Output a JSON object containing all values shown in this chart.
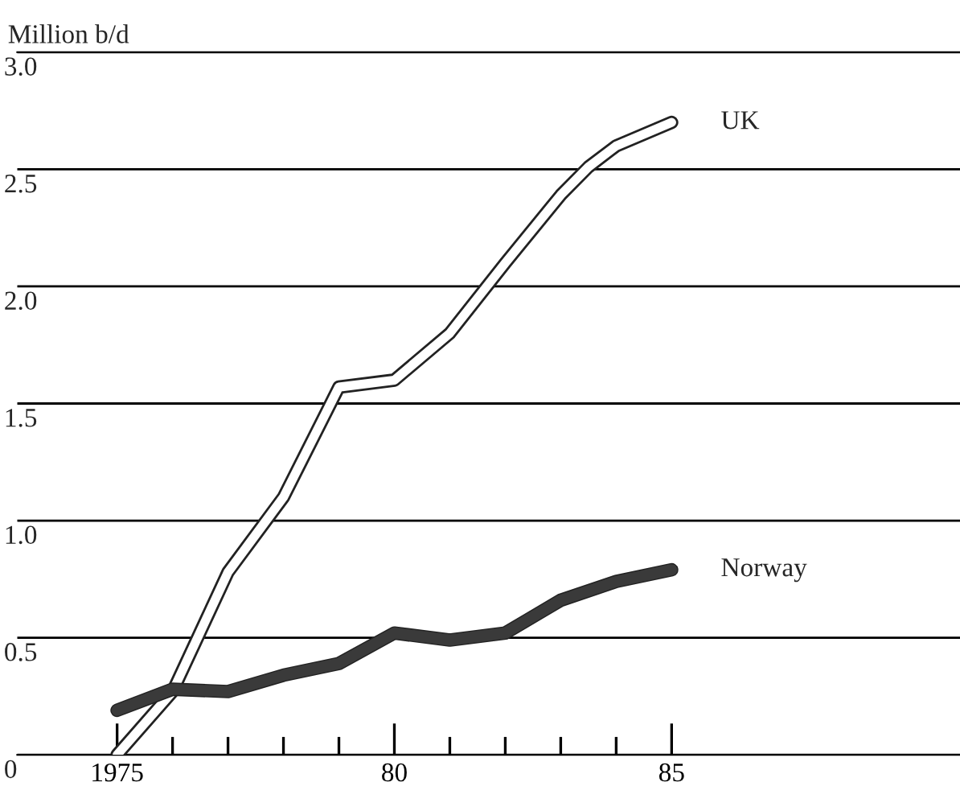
{
  "chart_data": {
    "type": "line",
    "ylabel": "Million b/d",
    "series": [
      {
        "name": "UK",
        "color": "#ffffff",
        "x": [
          1975,
          1976,
          1977,
          1978,
          1979,
          1980,
          1981,
          1982,
          1983,
          1983.5,
          1984,
          1985
        ],
        "values": [
          0,
          0.27,
          0.78,
          1.1,
          1.57,
          1.6,
          1.8,
          2.1,
          2.39,
          2.51,
          2.6,
          2.7
        ]
      },
      {
        "name": "Norway",
        "color": "#3a3a3a",
        "x": [
          1975,
          1976,
          1977,
          1978,
          1979,
          1980,
          1981,
          1982,
          1983,
          1984,
          1985
        ],
        "values": [
          0.19,
          0.28,
          0.27,
          0.34,
          0.39,
          0.52,
          0.49,
          0.52,
          0.66,
          0.74,
          0.79
        ]
      }
    ],
    "xlim": [
      1973.2,
      1990.2
    ],
    "ylim": [
      0,
      3.0
    ],
    "xticks": [
      {
        "value": 1975,
        "label": "1975"
      },
      {
        "value": 1976,
        "label": null
      },
      {
        "value": 1977,
        "label": null
      },
      {
        "value": 1978,
        "label": null
      },
      {
        "value": 1979,
        "label": null
      },
      {
        "value": 1980,
        "label": "80"
      },
      {
        "value": 1981,
        "label": null
      },
      {
        "value": 1982,
        "label": null
      },
      {
        "value": 1983,
        "label": null
      },
      {
        "value": 1984,
        "label": null
      },
      {
        "value": 1985,
        "label": "85"
      }
    ],
    "yticks": [
      0,
      0.5,
      {
        "value": 1.0,
        "label": "1.0"
      },
      {
        "value": 1.5,
        "label": "1.5"
      },
      {
        "value": 2.0,
        "label": "2.0"
      },
      {
        "value": 2.5,
        "label": "2.5"
      },
      {
        "value": 3.0,
        "label": "3.0"
      }
    ],
    "grid": "y",
    "legend": false,
    "marker": "none",
    "line_style": "solid"
  }
}
